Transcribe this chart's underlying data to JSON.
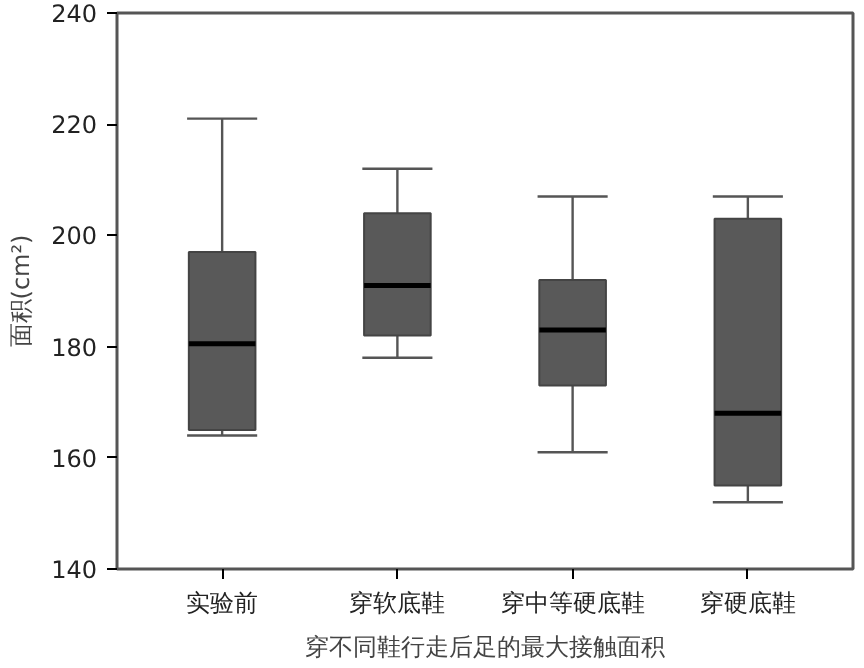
{
  "chart_data": {
    "type": "box",
    "xlabel": "穿不同鞋行走后足的最大接触面积",
    "ylabel": "面积(cm²)",
    "categories": [
      "实验前",
      "穿软底鞋",
      "穿中等硬底鞋",
      "穿硬底鞋"
    ],
    "color": "#595959",
    "boxes": [
      {
        "low": 164,
        "q1": 165,
        "median": 180.5,
        "q3": 197,
        "high": 221
      },
      {
        "low": 178,
        "q1": 182,
        "median": 191,
        "q3": 204,
        "high": 212
      },
      {
        "low": 161,
        "q1": 173,
        "median": 183,
        "q3": 192,
        "high": 207
      },
      {
        "low": 152,
        "q1": 155,
        "median": 168,
        "q3": 203,
        "high": 207
      }
    ],
    "ylim": [
      140,
      240
    ],
    "yticks": [
      140,
      160,
      180,
      200,
      220,
      240
    ],
    "grid": false
  }
}
